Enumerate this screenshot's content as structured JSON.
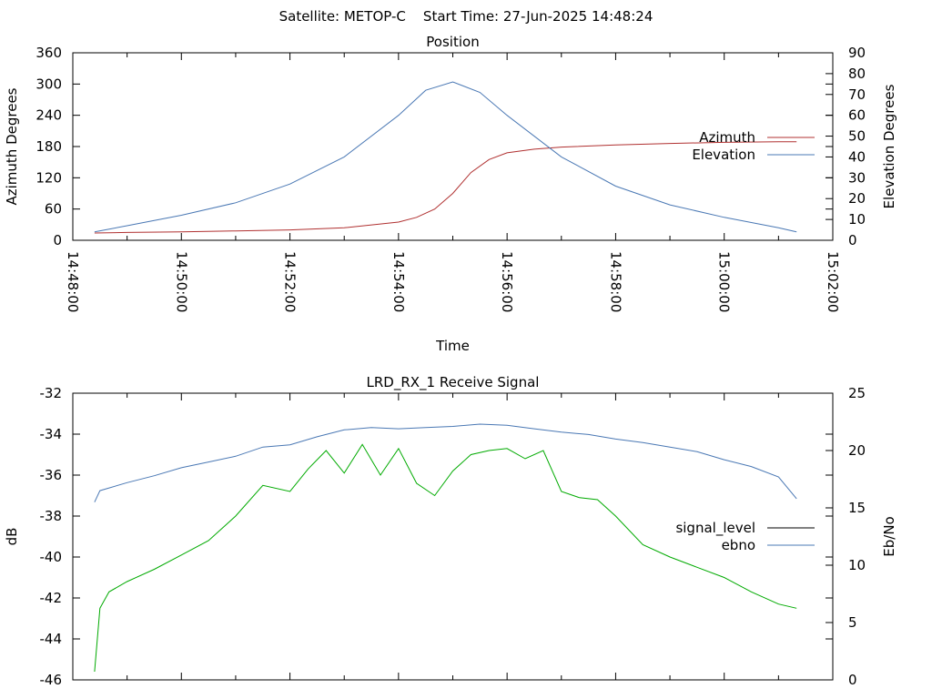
{
  "header": {
    "title": "Satellite: METOP-C    Start Time: 27-Jun-2025 14:48:24"
  },
  "chart_data": [
    {
      "id": "position",
      "type": "line",
      "title": "Position",
      "xlabel": "Time",
      "ylabel": "Azimuth Degrees",
      "y2label": "Elevation Degrees",
      "xlim": [
        "14:48:00",
        "15:02:00"
      ],
      "ylim": [
        0,
        360
      ],
      "y2lim": [
        0,
        90
      ],
      "xticks": [
        "14:48:00",
        "14:50:00",
        "14:52:00",
        "14:54:00",
        "14:56:00",
        "14:58:00",
        "15:00:00",
        "15:02:00"
      ],
      "yticks": [
        0,
        60,
        120,
        180,
        240,
        300,
        360
      ],
      "y2ticks": [
        0,
        10,
        20,
        30,
        40,
        50,
        60,
        70,
        80,
        90
      ],
      "legend_position": "right",
      "grid": false,
      "series": [
        {
          "name": "Azimuth",
          "axis": "y",
          "color": "#b03030",
          "x": [
            "14:48:24",
            "14:49:00",
            "14:50:00",
            "14:51:00",
            "14:52:00",
            "14:53:00",
            "14:54:00",
            "14:54:20",
            "14:54:40",
            "14:55:00",
            "14:55:20",
            "14:55:40",
            "14:56:00",
            "14:56:30",
            "14:57:00",
            "14:58:00",
            "14:59:00",
            "15:00:00",
            "15:01:00",
            "15:01:20"
          ],
          "values": [
            14,
            15,
            16,
            18,
            20,
            24,
            35,
            44,
            60,
            90,
            130,
            155,
            168,
            175,
            179,
            183,
            186,
            188,
            189,
            189
          ]
        },
        {
          "name": "Elevation",
          "axis": "y2",
          "color": "#4a78b4",
          "x": [
            "14:48:24",
            "14:49:00",
            "14:50:00",
            "14:51:00",
            "14:52:00",
            "14:53:00",
            "14:54:00",
            "14:54:30",
            "14:55:00",
            "14:55:30",
            "14:56:00",
            "14:57:00",
            "14:58:00",
            "14:59:00",
            "15:00:00",
            "15:01:00",
            "15:01:20"
          ],
          "values": [
            4,
            7,
            12,
            18,
            27,
            40,
            60,
            72,
            76,
            71,
            60,
            40,
            26,
            17,
            11,
            6,
            4
          ]
        }
      ]
    },
    {
      "id": "signal",
      "type": "line",
      "title": "LRD_RX_1 Receive Signal",
      "ylabel": "dB",
      "y2label": "Eb/No",
      "xlim": [
        "14:48:00",
        "15:02:00"
      ],
      "ylim": [
        -46,
        -32
      ],
      "y2lim": [
        0,
        25
      ],
      "yticks": [
        -46,
        -44,
        -42,
        -40,
        -38,
        -36,
        -34,
        -32
      ],
      "y2ticks": [
        0,
        5,
        10,
        15,
        20,
        25
      ],
      "legend_position": "right",
      "grid": false,
      "series": [
        {
          "name": "signal_level",
          "axis": "y",
          "color": "#00aa00",
          "legend_color": "#000000",
          "x": [
            "14:48:24",
            "14:48:30",
            "14:48:40",
            "14:49:00",
            "14:49:30",
            "14:50:00",
            "14:50:30",
            "14:51:00",
            "14:51:30",
            "14:52:00",
            "14:52:20",
            "14:52:40",
            "14:53:00",
            "14:53:20",
            "14:53:40",
            "14:54:00",
            "14:54:20",
            "14:54:40",
            "14:55:00",
            "14:55:20",
            "14:55:40",
            "14:56:00",
            "14:56:20",
            "14:56:40",
            "14:57:00",
            "14:57:20",
            "14:57:40",
            "14:58:00",
            "14:58:30",
            "14:59:00",
            "14:59:30",
            "15:00:00",
            "15:00:30",
            "15:01:00",
            "15:01:20"
          ],
          "values": [
            -45.6,
            -42.5,
            -41.7,
            -41.2,
            -40.6,
            -39.9,
            -39.2,
            -38.0,
            -36.5,
            -36.8,
            -35.7,
            -34.8,
            -35.9,
            -34.5,
            -36.0,
            -34.7,
            -36.4,
            -37.0,
            -35.8,
            -35.0,
            -34.8,
            -34.7,
            -35.2,
            -34.8,
            -36.8,
            -37.1,
            -37.2,
            -38.0,
            -39.4,
            -40.0,
            -40.5,
            -41.0,
            -41.7,
            -42.3,
            -42.5
          ]
        },
        {
          "name": "ebno",
          "axis": "y2",
          "color": "#4a78b4",
          "x": [
            "14:48:24",
            "14:48:30",
            "14:49:00",
            "14:49:30",
            "14:50:00",
            "14:50:30",
            "14:51:00",
            "14:51:30",
            "14:52:00",
            "14:52:30",
            "14:53:00",
            "14:53:30",
            "14:54:00",
            "14:54:30",
            "14:55:00",
            "14:55:30",
            "14:56:00",
            "14:56:30",
            "14:57:00",
            "14:57:30",
            "14:58:00",
            "14:58:30",
            "14:59:00",
            "14:59:30",
            "15:00:00",
            "15:00:30",
            "15:01:00",
            "15:01:20"
          ],
          "values": [
            15.5,
            16.5,
            17.2,
            17.8,
            18.5,
            19.0,
            19.5,
            20.3,
            20.5,
            21.2,
            21.8,
            22.0,
            21.9,
            22.0,
            22.1,
            22.3,
            22.2,
            21.9,
            21.6,
            21.4,
            21.0,
            20.7,
            20.3,
            19.9,
            19.2,
            18.6,
            17.7,
            15.8
          ]
        }
      ]
    }
  ]
}
